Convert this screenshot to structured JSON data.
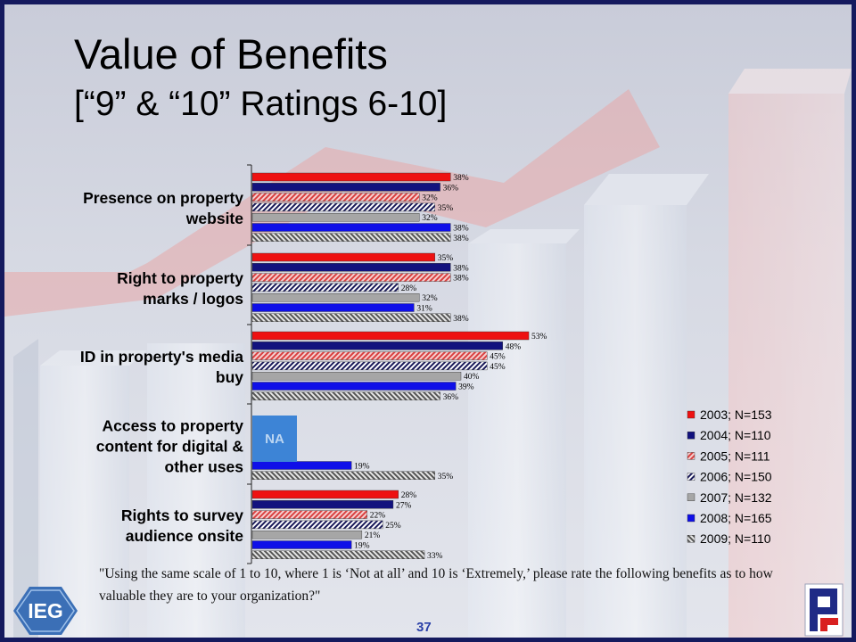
{
  "title": "Value of Benefits",
  "subtitle": "[“9” & “10” Ratings 6-10]",
  "question": "\"Using the same scale of 1 to 10, where 1 is ‘Not at all’ and 10 is ‘Extremely,’ please rate the following benefits as to how valuable they are to your organization?\"",
  "page_number": "37",
  "na_label": "NA",
  "logos": {
    "left": "IEG",
    "right": "P"
  },
  "chart_data": {
    "type": "bar",
    "orientation": "horizontal",
    "categories": [
      "Presence on property website",
      "Right to property marks / logos",
      "ID in property's media buy",
      "Access to property content for digital & other uses",
      "Rights to survey audience onsite"
    ],
    "category_lines": [
      [
        "Presence on property",
        "website"
      ],
      [
        "Right to property",
        "marks / logos"
      ],
      [
        "ID in property's media",
        "buy"
      ],
      [
        "Access to property",
        "content for digital &",
        "other uses"
      ],
      [
        "Rights to survey",
        "audience onsite"
      ]
    ],
    "series": [
      {
        "name": "2003; N=153",
        "values": [
          38,
          35,
          53,
          null,
          28
        ],
        "color": "#ee1111",
        "pattern": "solid"
      },
      {
        "name": "2004; N=110",
        "values": [
          36,
          38,
          48,
          null,
          27
        ],
        "color": "#12127e",
        "pattern": "solid"
      },
      {
        "name": "2005; N=111",
        "values": [
          32,
          38,
          45,
          null,
          22
        ],
        "color": "#d94040",
        "pattern": "hatch-red"
      },
      {
        "name": "2006; N=150",
        "values": [
          35,
          28,
          45,
          null,
          25
        ],
        "color": "#1a1a5a",
        "pattern": "hatch-navy"
      },
      {
        "name": "2007; N=132",
        "values": [
          32,
          32,
          40,
          null,
          21
        ],
        "color": "#a6a6a6",
        "pattern": "solid"
      },
      {
        "name": "2008; N=165",
        "values": [
          38,
          31,
          39,
          19,
          19
        ],
        "color": "#0f0fe8",
        "pattern": "solid"
      },
      {
        "name": "2009; N=110",
        "values": [
          38,
          38,
          36,
          35,
          33
        ],
        "color": "#555555",
        "pattern": "hatch-gray"
      }
    ],
    "value_suffix": "%",
    "legend_position": "right",
    "grid": false,
    "xlim": [
      0,
      100
    ]
  }
}
